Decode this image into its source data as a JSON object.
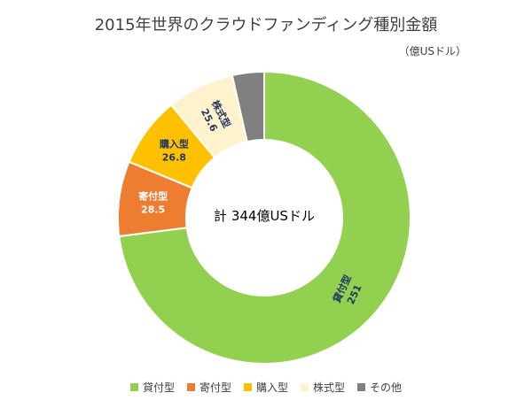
{
  "chart_data": {
    "type": "pie",
    "title": "2015年世界のクラウドファンディング種別金額",
    "unit_label": "（億USドル）",
    "center_label": "計 344億USドル",
    "legend_position": "bottom",
    "slices": [
      {
        "label": "貸付型",
        "value": 251,
        "value_label": "251",
        "color": "#92d050",
        "label_color": "#1f3864"
      },
      {
        "label": "寄付型",
        "value": 28.5,
        "value_label": "28.5",
        "color": "#ed7d31",
        "label_color": "#ffffff"
      },
      {
        "label": "購入型",
        "value": 26.8,
        "value_label": "26.8",
        "color": "#ffc000",
        "label_color": "#1f3864"
      },
      {
        "label": "株式型",
        "value": 25.6,
        "value_label": "25.6",
        "color": "#fff2cc",
        "label_color": "#1f3864"
      },
      {
        "label": "その他",
        "value": 12.1,
        "value_label": "",
        "color": "#808080",
        "label_color": "#ffffff"
      }
    ]
  }
}
